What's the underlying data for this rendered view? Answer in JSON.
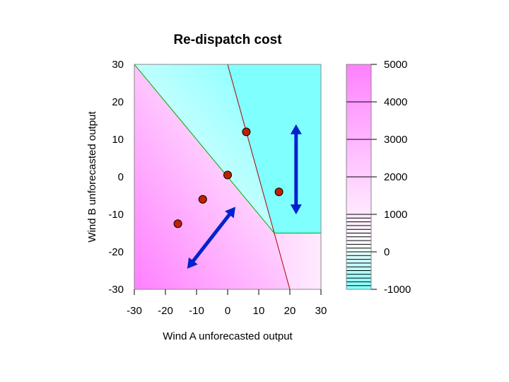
{
  "chart_data": {
    "type": "heatmap",
    "title": "Re-dispatch cost",
    "xlabel": "Wind A unforecasted output",
    "ylabel": "Wind B unforecasted output",
    "xlim": [
      -30,
      30
    ],
    "ylim": [
      -30,
      30
    ],
    "x_ticks": [
      "-30",
      "-20",
      "-10",
      "0",
      "10",
      "20",
      "30"
    ],
    "y_ticks": [
      "-30",
      "-20",
      "-10",
      "0",
      "10",
      "20",
      "30"
    ],
    "colorbar": {
      "range": [
        -1000,
        5000
      ],
      "ticks": [
        "-1000",
        "0",
        "1000",
        "2000",
        "3000",
        "4000",
        "5000"
      ],
      "low_color": "#80ffff",
      "mid_color": "#ffffff",
      "high_color": "#ff80ff"
    },
    "boundaries": [
      {
        "color": "#00aa00",
        "points": [
          [
            -30,
            30
          ],
          [
            15,
            -15
          ],
          [
            30,
            -15
          ]
        ]
      },
      {
        "color": "#aa0000",
        "points": [
          [
            0,
            30
          ],
          [
            20,
            -30
          ]
        ]
      }
    ],
    "points": [
      {
        "x": -16,
        "y": -12.5
      },
      {
        "x": -8,
        "y": -6
      },
      {
        "x": 0,
        "y": 0.5
      },
      {
        "x": 6,
        "y": 12
      },
      {
        "x": 16.5,
        "y": -4
      }
    ],
    "arrows": [
      {
        "from": [
          -13,
          -24.5
        ],
        "to": [
          2.5,
          -8
        ]
      },
      {
        "from": [
          22,
          14
        ],
        "to": [
          22,
          -10
        ]
      }
    ]
  }
}
